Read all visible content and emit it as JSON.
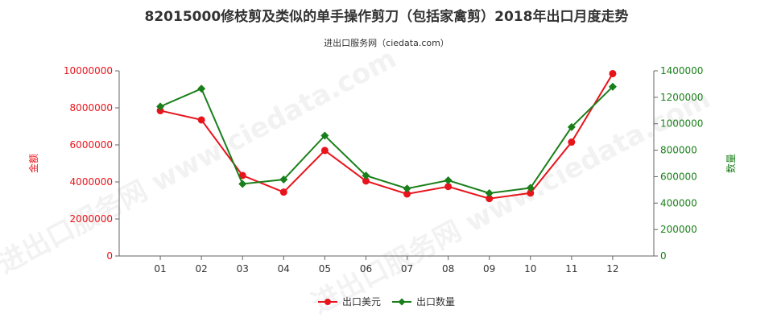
{
  "chart_data": {
    "type": "line",
    "title": "82015000修枝剪及类似的单手操作剪刀（包括家禽剪）2018年出口月度走势",
    "subtitle": "进出口服务网（ciedata.com）",
    "categories": [
      "01",
      "02",
      "03",
      "04",
      "05",
      "06",
      "07",
      "08",
      "09",
      "10",
      "11",
      "12"
    ],
    "y_left": {
      "label": "金额",
      "min": 0,
      "max": 10000000,
      "ticks": [
        "0",
        "2000000",
        "4000000",
        "6000000",
        "8000000",
        "10000000"
      ]
    },
    "y_right": {
      "label": "数量",
      "min": 0,
      "max": 1400000,
      "ticks": [
        "0",
        "200000",
        "400000",
        "600000",
        "800000",
        "1000000",
        "1200000",
        "1400000"
      ]
    },
    "series": [
      {
        "name": "出口美元",
        "axis": "left",
        "color": "#e8141c",
        "values": [
          7850000,
          7350000,
          4350000,
          3450000,
          5700000,
          4050000,
          3350000,
          3750000,
          3100000,
          3400000,
          6150000,
          9850000
        ]
      },
      {
        "name": "出口数量",
        "axis": "right",
        "color": "#1a7f1a",
        "values": [
          1130000,
          1265000,
          545000,
          578000,
          910000,
          608000,
          510000,
          572000,
          475000,
          515000,
          975000,
          1280000
        ]
      }
    ],
    "legend_position": "bottom-center",
    "grid": false,
    "left_axis_color": "#e8141c",
    "right_axis_color": "#1a7f1a"
  },
  "watermark": "进出口服务网 www.ciedata.com"
}
